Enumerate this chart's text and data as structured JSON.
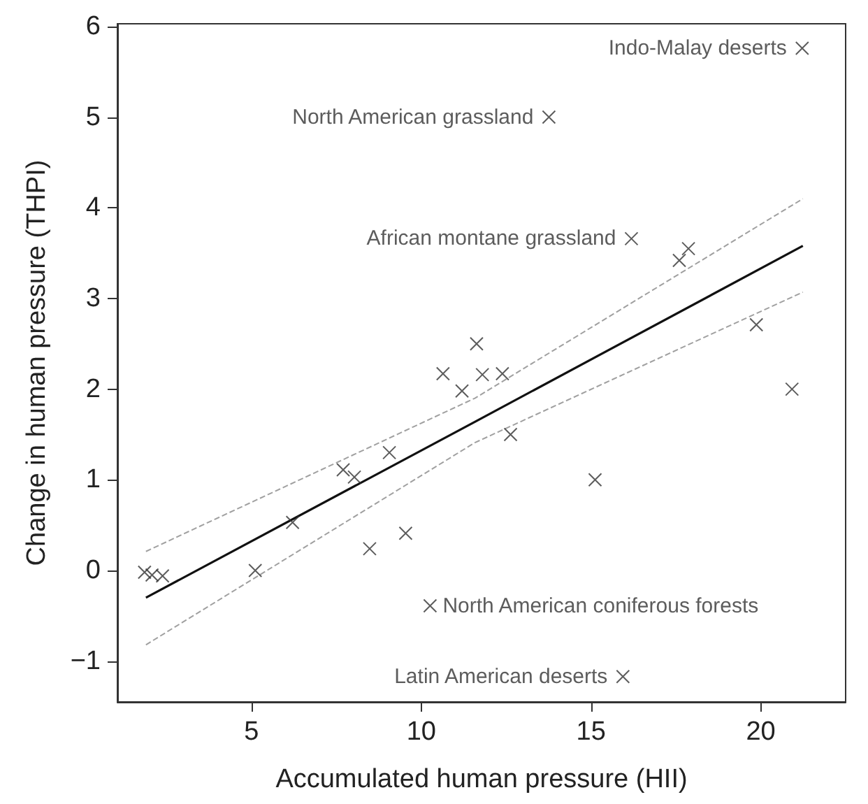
{
  "chart_data": {
    "type": "scatter",
    "xlabel": "Accumulated human pressure (HII)",
    "ylabel": "Change in human pressure (THPI)",
    "xlim": [
      1.05,
      22.5
    ],
    "xticks": [
      5,
      10,
      15,
      20
    ],
    "ylim": [
      -1.45,
      6.03
    ],
    "yticks": [
      {
        "value": -1,
        "label": "−1"
      },
      0,
      1,
      2,
      3,
      4,
      5,
      6
    ],
    "series": [
      {
        "color": "#333333",
        "marker": "cross",
        "x": [
          1.85,
          2.07,
          2.38,
          5.11,
          6.21,
          7.7,
          8.03,
          8.48,
          9.06,
          9.54,
          10.26,
          10.64,
          11.2,
          11.63,
          11.8,
          12.39,
          12.63,
          13.76,
          15.12,
          15.94,
          16.19,
          17.6,
          17.87,
          19.87,
          20.92,
          21.22
        ],
        "values": [
          -0.02,
          -0.05,
          -0.06,
          0.0,
          0.53,
          1.11,
          1.03,
          0.24,
          1.3,
          0.41,
          -0.39,
          2.17,
          1.98,
          2.5,
          2.16,
          2.17,
          1.5,
          5.0,
          1.0,
          -1.17,
          3.66,
          3.42,
          3.55,
          2.71,
          2.0,
          5.76
        ]
      },
      {
        "type": "line",
        "color": "#111111",
        "marker": "none",
        "line_style": "solid",
        "x": [
          1.89,
          11.58,
          21.24
        ],
        "values": [
          -0.3,
          1.64,
          3.58
        ]
      },
      {
        "type": "line",
        "color": "#a0a0a0",
        "marker": "none",
        "line_style": "dashed",
        "x": [
          1.89,
          11.58,
          21.24
        ],
        "values": [
          0.21,
          1.9,
          4.1
        ]
      },
      {
        "type": "line",
        "color": "#a0a0a0",
        "marker": "none",
        "line_style": "dashed",
        "x": [
          1.89,
          11.58,
          21.24
        ],
        "values": [
          -0.82,
          1.41,
          3.07
        ]
      }
    ],
    "annotations": [
      {
        "text": "Indo-Malay deserts",
        "x": 21.22,
        "y": 5.76
      },
      {
        "text": "North American grassland",
        "x": 13.76,
        "y": 5.0
      },
      {
        "text": "African montane grassland",
        "x": 16.19,
        "y": 3.66
      },
      {
        "text": "North American coniferous forests",
        "x": 10.26,
        "y": -0.39
      },
      {
        "text": "Latin American deserts",
        "x": 15.94,
        "y": -1.17
      }
    ]
  }
}
